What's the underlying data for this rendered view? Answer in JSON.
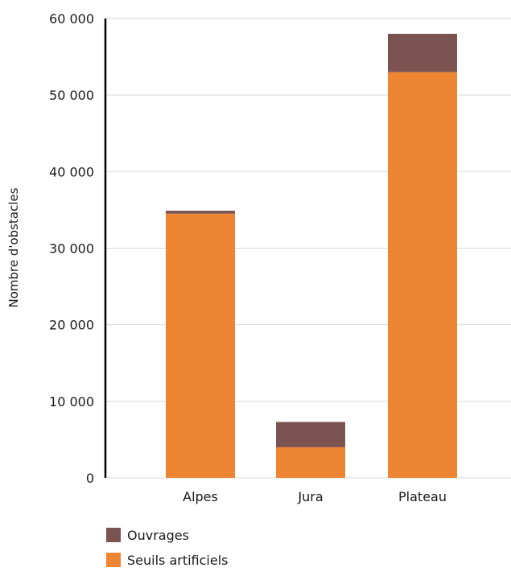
{
  "chart_data": {
    "type": "bar",
    "stacked": true,
    "categories": [
      "Alpes",
      "Jura",
      "Plateau"
    ],
    "series": [
      {
        "name": "Seuils artificiels",
        "values": [
          34500,
          4000,
          53000
        ],
        "color": "#ee8533"
      },
      {
        "name": "Ouvrages",
        "values": [
          400,
          3300,
          5000
        ],
        "color": "#7b5350"
      }
    ],
    "ylabel": "Nombre d'obstacles",
    "xlabel": "",
    "ylim": [
      0,
      60000
    ],
    "yticks": [
      0,
      10000,
      20000,
      30000,
      40000,
      50000,
      60000
    ],
    "ytick_labels": [
      "0",
      "10 000",
      "20 000",
      "30 000",
      "40 000",
      "50 000",
      "60 000"
    ],
    "grid": true,
    "legend_position": "bottom-left",
    "legend": [
      "Ouvrages",
      "Seuils artificiels"
    ]
  }
}
